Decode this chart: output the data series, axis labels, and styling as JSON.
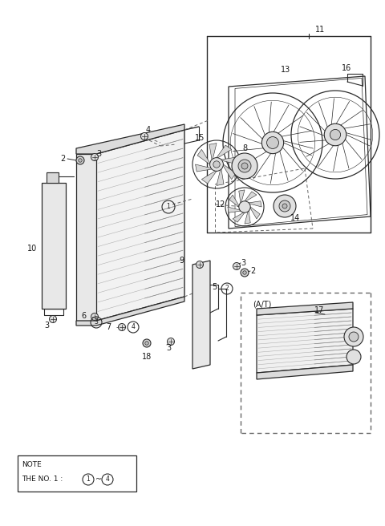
{
  "bg_color": "#ffffff",
  "line_color": "#2a2a2a",
  "dashed_color": "#666666",
  "text_color": "#1a1a1a",
  "fig_width": 4.8,
  "fig_height": 6.56,
  "dpi": 100,
  "note_text1": "NOTE",
  "note_text2": "THE NO. 1 : ①~④",
  "at_label": "(A/T)"
}
